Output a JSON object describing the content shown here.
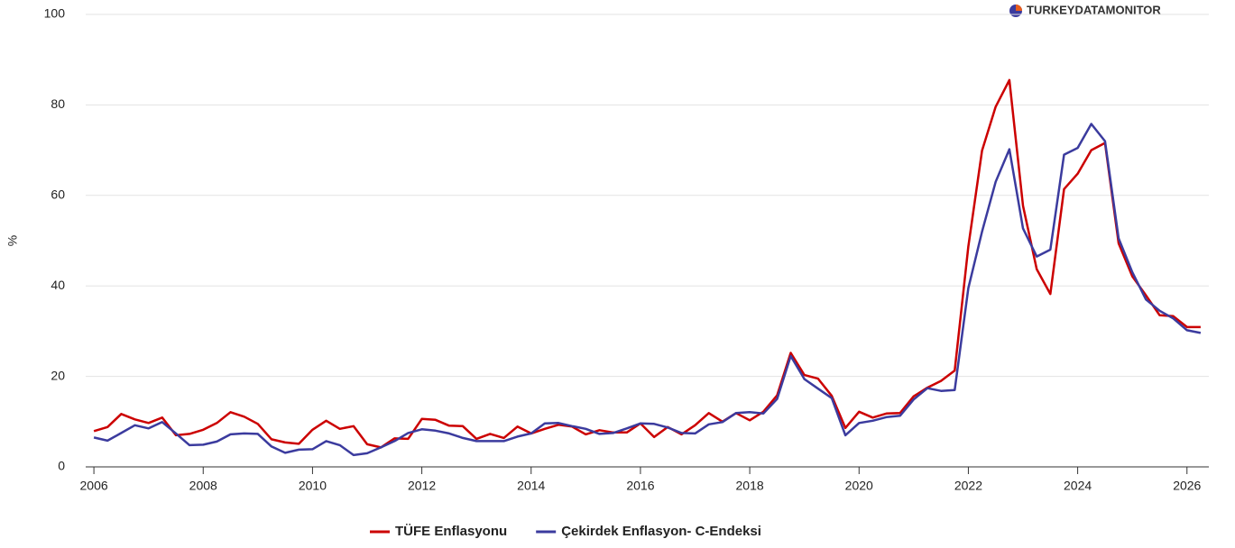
{
  "chart_data": {
    "type": "line",
    "y_label": "%",
    "logo": "TURKEYDATAMONITOR",
    "x": [
      2006,
      2006.25,
      2006.5,
      2006.75,
      2007,
      2007.25,
      2007.5,
      2007.75,
      2008,
      2008.25,
      2008.5,
      2008.75,
      2009,
      2009.25,
      2009.5,
      2009.75,
      2010,
      2010.25,
      2010.5,
      2010.75,
      2011,
      2011.25,
      2011.5,
      2011.75,
      2012,
      2012.25,
      2012.5,
      2012.75,
      2013,
      2013.25,
      2013.5,
      2013.75,
      2014,
      2014.25,
      2014.5,
      2014.75,
      2015,
      2015.25,
      2015.5,
      2015.75,
      2016,
      2016.25,
      2016.5,
      2016.75,
      2017,
      2017.25,
      2017.5,
      2017.75,
      2018,
      2018.25,
      2018.5,
      2018.75,
      2019,
      2019.25,
      2019.5,
      2019.75,
      2020,
      2020.25,
      2020.5,
      2020.75,
      2021,
      2021.25,
      2021.5,
      2021.75,
      2022,
      2022.25,
      2022.5,
      2022.75,
      2023,
      2023.25,
      2023.5,
      2023.75,
      2024,
      2024.25,
      2024.5,
      2024.75,
      2025,
      2025.25,
      2025.5,
      2025.75,
      2026,
      2026.25
    ],
    "series": [
      {
        "name": "TÜFE Enflasyonu",
        "color": "#cc0000",
        "values": [
          7.9,
          8.8,
          11.7,
          10.5,
          9.7,
          10.9,
          7.0,
          7.3,
          8.2,
          9.7,
          12.1,
          11.1,
          9.5,
          6.1,
          5.4,
          5.1,
          8.2,
          10.2,
          8.4,
          9.0,
          5.0,
          4.3,
          6.3,
          6.2,
          10.6,
          10.4,
          9.1,
          9.0,
          6.2,
          7.3,
          6.4,
          8.9,
          7.4,
          8.4,
          9.3,
          8.9,
          7.2,
          8.1,
          7.6,
          7.6,
          9.6,
          6.6,
          8.8,
          7.2,
          9.2,
          11.9,
          10.0,
          11.9,
          10.3,
          12.2,
          15.8,
          25.2,
          20.3,
          19.5,
          15.7,
          8.6,
          12.2,
          10.9,
          11.8,
          11.9,
          15.6,
          17.5,
          19.0,
          21.3,
          48.7,
          69.9,
          79.6,
          85.5,
          57.7,
          43.7,
          38.2,
          61.4,
          64.8,
          70.0,
          71.6,
          49.4,
          42.1,
          37.9,
          33.5,
          33.3,
          30.9,
          30.9
        ]
      },
      {
        "name": "Çekirdek Enflasyon- C-Endeksi",
        "color": "#3b3b9e",
        "values": [
          6.5,
          5.8,
          7.5,
          9.2,
          8.5,
          9.9,
          7.4,
          4.8,
          4.9,
          5.6,
          7.2,
          7.4,
          7.3,
          4.5,
          3.1,
          3.8,
          3.9,
          5.7,
          4.8,
          2.6,
          3.0,
          4.3,
          5.7,
          7.5,
          8.3,
          8.0,
          7.4,
          6.4,
          5.7,
          5.7,
          5.7,
          6.7,
          7.4,
          9.6,
          9.7,
          9.0,
          8.4,
          7.3,
          7.5,
          8.5,
          9.6,
          9.5,
          8.7,
          7.5,
          7.4,
          9.4,
          9.9,
          11.9,
          12.1,
          11.8,
          15.0,
          24.5,
          19.4,
          17.3,
          15.2,
          7.0,
          9.7,
          10.2,
          11.0,
          11.3,
          14.9,
          17.4,
          16.8,
          17.0,
          39.5,
          52.0,
          63.0,
          70.2,
          52.7,
          46.5,
          48.0,
          69.0,
          70.5,
          75.8,
          72.0,
          50.5,
          43.0,
          37.0,
          34.5,
          32.8,
          30.2,
          29.6
        ]
      }
    ],
    "xlim": [
      2005.85,
      2026.4
    ],
    "xticks": [
      2006,
      2008,
      2010,
      2012,
      2014,
      2016,
      2018,
      2020,
      2022,
      2024,
      2026
    ],
    "ylim": [
      0,
      100
    ],
    "yticks": [
      0,
      20,
      40,
      60,
      80,
      100
    ],
    "grid": true,
    "legend": "bottom"
  }
}
